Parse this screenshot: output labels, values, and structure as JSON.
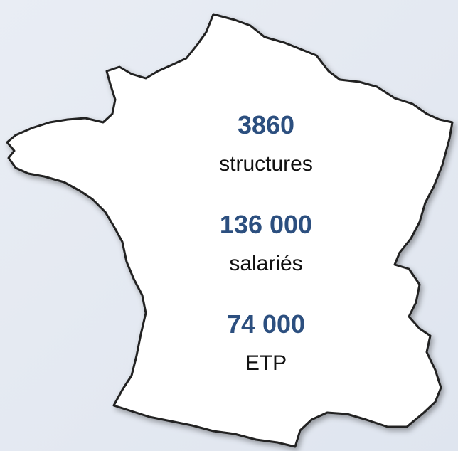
{
  "stats": [
    {
      "value": "3860",
      "label": "structures"
    },
    {
      "value": "136 000",
      "label": "salariés"
    },
    {
      "value": "74 000",
      "label": "ETP"
    }
  ]
}
